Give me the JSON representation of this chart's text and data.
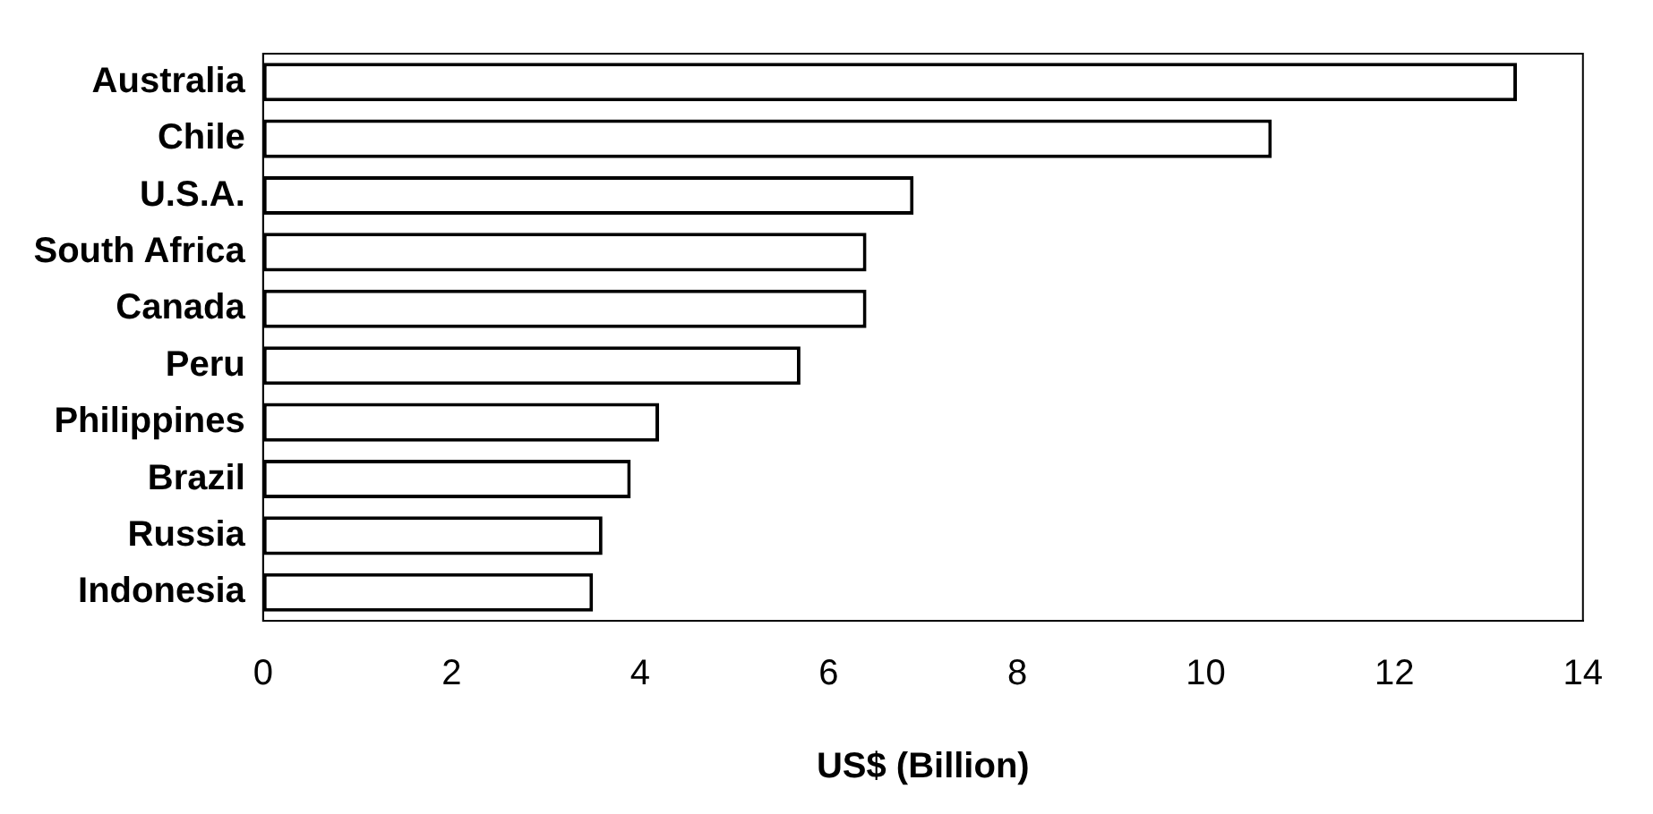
{
  "chart_data": {
    "type": "bar",
    "orientation": "horizontal",
    "xlabel": "US$ (Billion)",
    "categories": [
      "Australia",
      "Chile",
      "U.S.A.",
      "South Africa",
      "Canada",
      "Peru",
      "Philippines",
      "Brazil",
      "Russia",
      "Indonesia"
    ],
    "values": [
      13.3,
      10.7,
      6.9,
      6.4,
      6.4,
      5.7,
      4.2,
      3.9,
      3.6,
      3.5
    ],
    "color": "#ffffff",
    "xlim": [
      0,
      14
    ],
    "xticks": [
      0,
      2,
      4,
      6,
      8,
      10,
      12,
      14
    ],
    "grid": false,
    "legend": false
  }
}
